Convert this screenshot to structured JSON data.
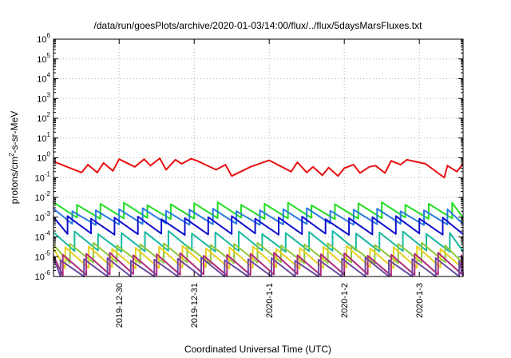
{
  "chart_data": {
    "type": "line",
    "title": "/data/run/goesPlots/archive/2020-01-03/14:00/flux/../flux/5daysMarsFluxes.txt",
    "xlabel": "Coordinated Universal Time (UTC)",
    "ylabel": {
      "base": "protons/cm",
      "sup": "2",
      "rest": "-s-sr-MeV"
    },
    "x_ticks": [
      "2019-12-30",
      "2019-12-31",
      "2020-1-1",
      "2020-1-2",
      "2020-1-3"
    ],
    "xlim": [
      "2019-12-29 03:00",
      "2020-01-03 14:00"
    ],
    "y_ticks": [
      {
        "mant": "10",
        "exp": "-6",
        "v": -6
      },
      {
        "mant": "10",
        "exp": "-5",
        "v": -5
      },
      {
        "mant": "10",
        "exp": "-4",
        "v": -4
      },
      {
        "mant": "10",
        "exp": "-3",
        "v": -3
      },
      {
        "mant": "10",
        "exp": "-2",
        "v": -2
      },
      {
        "mant": "10",
        "exp": "-1",
        "v": -1
      },
      {
        "mant": "10",
        "exp": "0",
        "v": 0
      },
      {
        "mant": "10",
        "exp": "1",
        "v": 1
      },
      {
        "mant": "10",
        "exp": "2",
        "v": 2
      },
      {
        "mant": "10",
        "exp": "3",
        "v": 3
      },
      {
        "mant": "10",
        "exp": "4",
        "v": 4
      },
      {
        "mant": "10",
        "exp": "5",
        "v": 5
      },
      {
        "mant": "10",
        "exp": "6",
        "v": 6
      }
    ],
    "ylim": [
      1e-06,
      1000000.0
    ],
    "yscale": "log",
    "grid": true,
    "legend": "none",
    "series": [
      {
        "color": "#e81010",
        "x": [
          "2019-12-29 03:00",
          "2019-12-29 12:00",
          "2019-12-29 14:00",
          "2019-12-29 17:00",
          "2019-12-29 19:00",
          "2019-12-29 22:00",
          "2019-12-30 00:00",
          "2019-12-30 05:00",
          "2019-12-30 08:00",
          "2019-12-30 10:00",
          "2019-12-30 13:00",
          "2019-12-30 15:00",
          "2019-12-30 18:00",
          "2019-12-30 20:00",
          "2019-12-30 23:00",
          "2019-12-31 01:00",
          "2019-12-31 07:00",
          "2019-12-31 10:00",
          "2019-12-31 12:00",
          "2019-12-31 18:00",
          "2020-01-01 00:00",
          "2020-01-01 07:00",
          "2020-01-01 09:00",
          "2020-01-01 12:00",
          "2020-01-01 14:00",
          "2020-01-01 17:00",
          "2020-01-01 19:00",
          "2020-01-01 22:00",
          "2020-01-02 00:00",
          "2020-01-02 03:00",
          "2020-01-02 05:00",
          "2020-01-02 08:00",
          "2020-01-02 10:00",
          "2020-01-02 13:00",
          "2020-01-02 15:00",
          "2020-01-02 18:00",
          "2020-01-02 20:00",
          "2020-01-03 02:00",
          "2020-01-03 08:00",
          "2020-01-03 09:00",
          "2020-01-03 12:00",
          "2020-01-03 14:00"
        ],
        "y": [
          0.65,
          0.18,
          0.45,
          0.18,
          0.55,
          0.22,
          0.85,
          0.35,
          0.85,
          0.4,
          0.95,
          0.25,
          0.8,
          0.5,
          0.9,
          0.7,
          0.25,
          0.45,
          0.12,
          0.35,
          0.75,
          0.2,
          0.6,
          0.18,
          0.35,
          0.13,
          0.32,
          0.12,
          0.3,
          0.45,
          0.17,
          0.35,
          0.4,
          0.17,
          0.7,
          0.45,
          0.8,
          0.5,
          0.1,
          0.4,
          0.2,
          0.5
        ]
      },
      {
        "color": "#22dd22",
        "base": -2.75,
        "amp": 0.35,
        "phase": 0.0
      },
      {
        "color": "#2a7be0",
        "base": -3.05,
        "amp": 0.35,
        "phase": 0.2
      },
      {
        "color": "#1010cc",
        "base": -3.5,
        "amp": 0.4,
        "phase": 0.4
      },
      {
        "color": "#18b8a0",
        "base": -4.3,
        "amp": 0.45,
        "phase": 0.1
      },
      {
        "color": "#8ec83a",
        "base": -4.9,
        "amp": 0.45,
        "phase": 0.3
      },
      {
        "color": "#e8d020",
        "base": -5.1,
        "amp": 0.5,
        "phase": 0.5
      },
      {
        "color": "#b02a7a",
        "base": -5.45,
        "amp": 0.5,
        "phase": 0.6
      },
      {
        "color": "#6a4aa0",
        "base": -5.65,
        "amp": 0.45,
        "phase": 0.7
      }
    ]
  }
}
